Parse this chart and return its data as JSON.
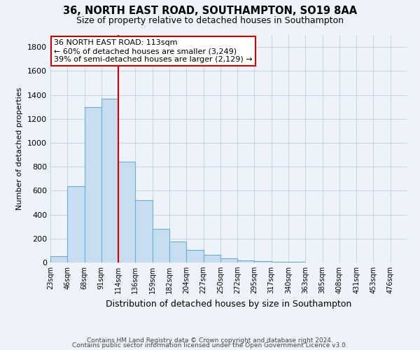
{
  "title": "36, NORTH EAST ROAD, SOUTHAMPTON, SO19 8AA",
  "subtitle": "Size of property relative to detached houses in Southampton",
  "xlabel": "Distribution of detached houses by size in Southampton",
  "ylabel": "Number of detached properties",
  "bar_values": [
    55,
    640,
    1300,
    1370,
    840,
    520,
    280,
    175,
    105,
    65,
    35,
    20,
    10,
    5,
    3,
    2,
    1,
    1,
    0,
    0,
    0
  ],
  "bar_labels": [
    "23sqm",
    "46sqm",
    "68sqm",
    "91sqm",
    "114sqm",
    "136sqm",
    "159sqm",
    "182sqm",
    "204sqm",
    "227sqm",
    "250sqm",
    "272sqm",
    "295sqm",
    "317sqm",
    "340sqm",
    "363sqm",
    "385sqm",
    "408sqm",
    "431sqm",
    "453sqm",
    "476sqm"
  ],
  "bar_color": "#c8ddf0",
  "bar_edge_color": "#6aaed6",
  "ylim": [
    0,
    1900
  ],
  "yticks": [
    0,
    200,
    400,
    600,
    800,
    1000,
    1200,
    1400,
    1600,
    1800
  ],
  "vline_x_index": 4,
  "annotation_title": "36 NORTH EAST ROAD: 113sqm",
  "annotation_line1": "← 60% of detached houses are smaller (3,249)",
  "annotation_line2": "39% of semi-detached houses are larger (2,129) →",
  "vline_color": "#cc0000",
  "annotation_box_color": "#ffffff",
  "annotation_box_edge": "#cc0000",
  "bg_color": "#eef3f9",
  "grid_color": "#c5d5e8",
  "footer1": "Contains HM Land Registry data © Crown copyright and database right 2024.",
  "footer2": "Contains public sector information licensed under the Open Government Licence v3.0."
}
